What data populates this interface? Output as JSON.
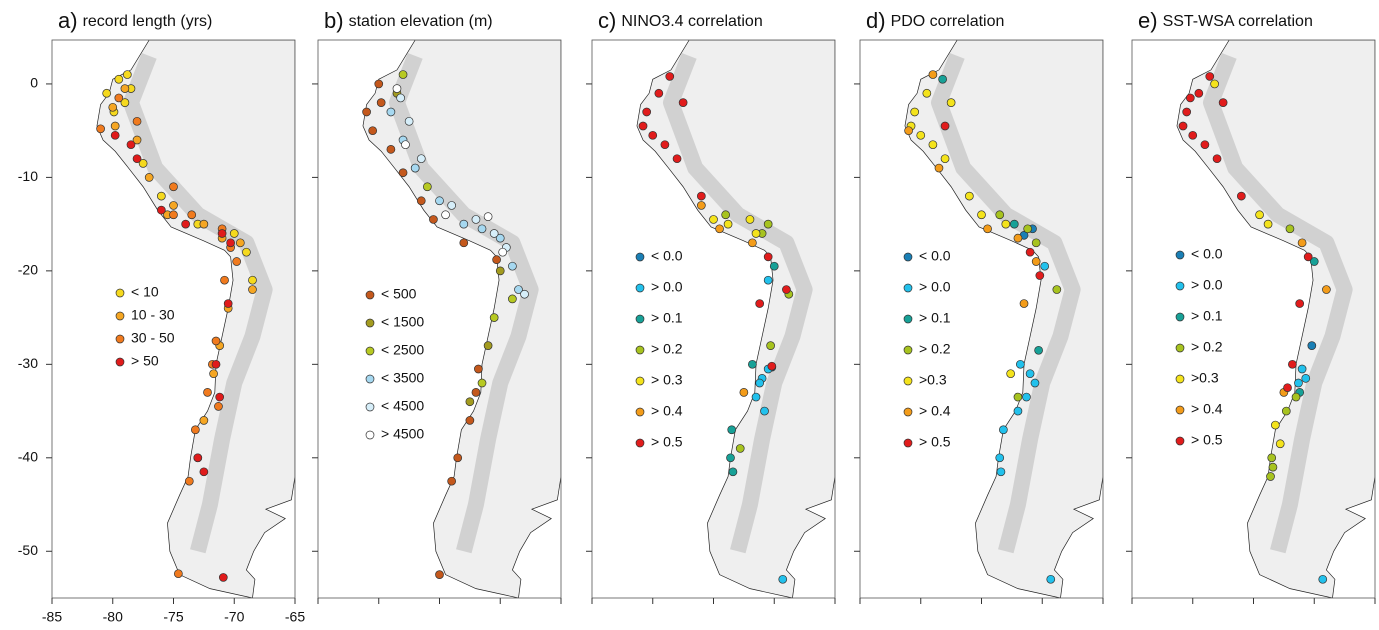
{
  "chart_data": [
    {
      "type": "scatter",
      "label": "a)",
      "title": "record length (yrs)",
      "xlim": [
        -85,
        -65
      ],
      "ylim": [
        -55,
        4.7
      ],
      "xticks": [
        -85,
        -80,
        -75,
        -70,
        -65
      ],
      "yticks": [
        0,
        -10,
        -20,
        -30,
        -40,
        -50
      ],
      "tick_labels": true,
      "series": [
        {
          "name": "< 10",
          "color": "#f5d91e",
          "x": [
            -79.5,
            -80.5,
            -78.8,
            -79.9,
            -77.5,
            -76,
            -73,
            -70,
            -69,
            -68.5,
            -79,
            -78.5
          ],
          "y": [
            0.5,
            -1,
            1,
            -3,
            -8.5,
            -12,
            -15,
            -16,
            -18,
            -21,
            -2,
            -0.5
          ]
        },
        {
          "name": "10 - 30",
          "color": "#f5a623",
          "x": [
            -79,
            -80,
            -78,
            -77,
            -75,
            -72.5,
            -71,
            -69.5,
            -68.5,
            -70.5,
            -71.2,
            -71.7,
            -72.5,
            -73,
            -79.8,
            -75.5
          ],
          "y": [
            -0.5,
            -2.5,
            -6,
            -10,
            -13,
            -15,
            -16.5,
            -17,
            -22,
            -24,
            -28,
            -31,
            -36,
            -40,
            -4.5,
            -14
          ]
        },
        {
          "name": "30 - 50",
          "color": "#f07a1e",
          "x": [
            -81,
            -79.5,
            -78,
            -75,
            -73.5,
            -71,
            -70.3,
            -70.8,
            -71.5,
            -71.8,
            -72.2,
            -73.2,
            -73.7,
            -74.6,
            -75,
            -69.8,
            -71.3
          ],
          "y": [
            -4.8,
            -1.5,
            -4,
            -11,
            -14,
            -15.5,
            -17.5,
            -21,
            -27.5,
            -30,
            -33,
            -37,
            -42.5,
            -52.4,
            -14,
            -19,
            -34.5
          ]
        },
        {
          "name": "> 50",
          "color": "#e01b1b",
          "x": [
            -79.8,
            -78,
            -76,
            -74,
            -71,
            -70.3,
            -70.5,
            -71.5,
            -73,
            -72.5,
            -71.2,
            -70.9,
            -78.5
          ],
          "y": [
            -5.5,
            -8,
            -13.5,
            -15,
            -16,
            -17,
            -23.5,
            -30,
            -40,
            -41.5,
            -33.5,
            -52.8,
            -6.5
          ]
        }
      ]
    },
    {
      "type": "scatter",
      "label": "b)",
      "title": "station elevation (m)",
      "xlim": [
        -85,
        -65
      ],
      "ylim": [
        -55,
        4.7
      ],
      "xticks": [
        -85,
        -80,
        -75,
        -70,
        -65
      ],
      "yticks": [
        0,
        -10,
        -20,
        -30,
        -40,
        -50
      ],
      "tick_labels": false,
      "series": [
        {
          "name": "< 500",
          "color": "#c4581c",
          "x": [
            -80,
            -81,
            -80.5,
            -79.8,
            -79,
            -78,
            -76.5,
            -75.5,
            -73,
            -71.8,
            -72,
            -72.5,
            -73.5,
            -74,
            -75,
            -70.3
          ],
          "y": [
            0,
            -3,
            -5,
            -2,
            -7,
            -9.5,
            -12.5,
            -14.5,
            -17,
            -30.5,
            -33,
            -36,
            -40,
            -42.5,
            -52.5,
            -18.8
          ]
        },
        {
          "name": "< 1500",
          "color": "#a39b1f",
          "x": [
            -78.5,
            -77,
            -70,
            -71,
            -72.5
          ],
          "y": [
            -1,
            -9,
            -20,
            -28,
            -34
          ]
        },
        {
          "name": "< 2500",
          "color": "#b7c922",
          "x": [
            -78,
            -76,
            -69,
            -70.5,
            -71.5
          ],
          "y": [
            1,
            -11,
            -23,
            -25,
            -32
          ]
        },
        {
          "name": "< 3500",
          "color": "#a6d8f0",
          "x": [
            -79,
            -78,
            -77,
            -75,
            -73,
            -71.5,
            -70,
            -69,
            -68.5
          ],
          "y": [
            -3,
            -6,
            -9,
            -12.5,
            -15,
            -15.5,
            -16.5,
            -19.5,
            -22
          ]
        },
        {
          "name": "< 4500",
          "color": "#d6eef9",
          "x": [
            -78.2,
            -77.5,
            -76.5,
            -74,
            -72,
            -70.5,
            -69.5,
            -68
          ],
          "y": [
            -1.5,
            -4,
            -8,
            -13,
            -14.5,
            -16,
            -17.5,
            -22.5
          ]
        },
        {
          "name": "> 4500",
          "color": "#ffffff",
          "x": [
            -78.5,
            -77.8,
            -74.5,
            -71,
            -69.8
          ],
          "y": [
            -0.5,
            -6.5,
            -14,
            -14.2,
            -18
          ]
        }
      ]
    },
    {
      "type": "scatter",
      "label": "c)",
      "title": "NINO3.4 correlation",
      "xlim": [
        -85,
        -65
      ],
      "ylim": [
        -55,
        4.7
      ],
      "xticks": [
        -85,
        -80,
        -75,
        -70,
        -65
      ],
      "yticks": [
        0,
        -10,
        -20,
        -30,
        -40,
        -50
      ],
      "tick_labels": false,
      "series": [
        {
          "name": "< 0.0",
          "color": "#1a7fb5",
          "x": [
            -70.2
          ],
          "y": [
            -30.3
          ]
        },
        {
          "name": "> 0.0",
          "color": "#22c1ec",
          "x": [
            -70.5,
            -71,
            -71.5,
            -70.8,
            -71.2,
            -70.5,
            -69.3
          ],
          "y": [
            -30.5,
            -31.5,
            -33.5,
            -35,
            -32,
            -21,
            -53
          ]
        },
        {
          "name": "> 0.1",
          "color": "#17a197",
          "x": [
            -73.5,
            -73.6,
            -73.4,
            -70,
            -71.8
          ],
          "y": [
            -37,
            -40,
            -41.5,
            -19.5,
            -30
          ]
        },
        {
          "name": "> 0.2",
          "color": "#a7c31f",
          "x": [
            -72.8,
            -68.8,
            -70.3,
            -70.5,
            -74,
            -71
          ],
          "y": [
            -39,
            -22.5,
            -28,
            -15,
            -14,
            -16
          ]
        },
        {
          "name": "> 0.3",
          "color": "#f4e31c",
          "x": [
            -72,
            -71.5,
            -73.8,
            -75
          ],
          "y": [
            -14.5,
            -16,
            -15,
            -14.5
          ]
        },
        {
          "name": "> 0.4",
          "color": "#f39c1a",
          "x": [
            -72.5,
            -71.8,
            -76,
            -74.5
          ],
          "y": [
            -33,
            -17,
            -13,
            -15.5
          ]
        },
        {
          "name": "> 0.5",
          "color": "#e11c1c",
          "x": [
            -79.5,
            -80.5,
            -80,
            -79,
            -78,
            -77.5,
            -80.8,
            -78.6,
            -76,
            -70.5,
            -69,
            -71.2,
            -70.2
          ],
          "y": [
            -1,
            -3,
            -5.5,
            -6.5,
            -8,
            -2,
            -4.5,
            0.8,
            -12,
            -18.5,
            -22,
            -23.5,
            -30.2
          ]
        }
      ]
    },
    {
      "type": "scatter",
      "label": "d)",
      "title": "PDO correlation",
      "xlim": [
        -85,
        -65
      ],
      "ylim": [
        -55,
        4.7
      ],
      "xticks": [
        -85,
        -80,
        -75,
        -70,
        -65
      ],
      "yticks": [
        0,
        -10,
        -20,
        -30,
        -40,
        -50
      ],
      "tick_labels": false,
      "series": [
        {
          "name": "< 0.0",
          "color": "#1a7fb5",
          "x": [
            -70.8,
            -71.5
          ],
          "y": [
            -15.5,
            -16.2
          ]
        },
        {
          "name": "> 0.0",
          "color": "#22c1ec",
          "x": [
            -71.8,
            -71,
            -70.6,
            -71.3,
            -72,
            -73.2,
            -73.5,
            -73.4,
            -69.3,
            -69.8
          ],
          "y": [
            -30,
            -31,
            -32,
            -33.5,
            -35,
            -37,
            -40,
            -41.5,
            -53,
            -19.5
          ]
        },
        {
          "name": "> 0.1",
          "color": "#17a197",
          "x": [
            -70.3,
            -72.3,
            -78.2
          ],
          "y": [
            -28.5,
            -15,
            0.5
          ]
        },
        {
          "name": "> 0.2",
          "color": "#a7c31f",
          "x": [
            -68.8,
            -70.5,
            -71.2,
            -73.5,
            -72
          ],
          "y": [
            -22,
            -17,
            -15.5,
            -14,
            -33.5
          ]
        },
        {
          "name": ">0.3",
          "color": "#f4e31c",
          "x": [
            -79.5,
            -80.5,
            -80,
            -79,
            -78,
            -77.5,
            -80.8,
            -76,
            -75,
            -73,
            -72.6
          ],
          "y": [
            -1,
            -3,
            -5.5,
            -6.5,
            -8,
            -2,
            -4.5,
            -12,
            -14,
            -15,
            -31
          ]
        },
        {
          "name": "> 0.4",
          "color": "#f39c1a",
          "x": [
            -79,
            -81,
            -78.5,
            -74.5,
            -72,
            -71.5,
            -70.5
          ],
          "y": [
            1,
            -5,
            -9,
            -15.5,
            -16.5,
            -23.5,
            -19
          ]
        },
        {
          "name": "> 0.5",
          "color": "#e11c1c",
          "x": [
            -78,
            -71,
            -70.2
          ],
          "y": [
            -4.5,
            -18,
            -20.5
          ]
        }
      ]
    },
    {
      "type": "scatter",
      "label": "e)",
      "title": "SST-WSA correlation",
      "xlim": [
        -85,
        -65
      ],
      "ylim": [
        -55,
        4.7
      ],
      "xticks": [
        -85,
        -80,
        -75,
        -70,
        -65
      ],
      "yticks": [
        0,
        -10,
        -20,
        -30,
        -40,
        -50
      ],
      "tick_labels": false,
      "series": [
        {
          "name": "< 0.0",
          "color": "#1a7fb5",
          "x": [
            -70.2
          ],
          "y": [
            -28
          ]
        },
        {
          "name": "> 0.0",
          "color": "#22c1ec",
          "x": [
            -71,
            -70.7,
            -71.3,
            -69.3
          ],
          "y": [
            -30.5,
            -31.5,
            -32,
            -53
          ]
        },
        {
          "name": "> 0.1",
          "color": "#17a197",
          "x": [
            -70,
            -71.2
          ],
          "y": [
            -19,
            -33
          ]
        },
        {
          "name": "> 0.2",
          "color": "#a7c31f",
          "x": [
            -73.5,
            -73.4,
            -73.6,
            -72.3,
            -71.5,
            -72
          ],
          "y": [
            -40,
            -41,
            -42,
            -35,
            -33.5,
            -15.5
          ]
        },
        {
          "name": ">0.3",
          "color": "#f4e31c",
          "x": [
            -73.2,
            -74.5,
            -72.8,
            -73.8,
            -78.2
          ],
          "y": [
            -36.5,
            -14,
            -38.5,
            -15,
            0
          ]
        },
        {
          "name": "> 0.4",
          "color": "#f39c1a",
          "x": [
            -72.5,
            -71,
            -69
          ],
          "y": [
            -33,
            -17,
            -22
          ]
        },
        {
          "name": "> 0.5",
          "color": "#e11c1c",
          "x": [
            -79.5,
            -80.5,
            -80,
            -79,
            -78,
            -77.5,
            -80.8,
            -78.6,
            -76,
            -70.5,
            -71.2,
            -71.8,
            -72.2,
            -80.2
          ],
          "y": [
            -1,
            -3,
            -5.5,
            -6.5,
            -8,
            -2,
            -4.5,
            0.8,
            -12,
            -18.5,
            -23.5,
            -30,
            -32.5,
            -1.5
          ]
        }
      ]
    }
  ]
}
